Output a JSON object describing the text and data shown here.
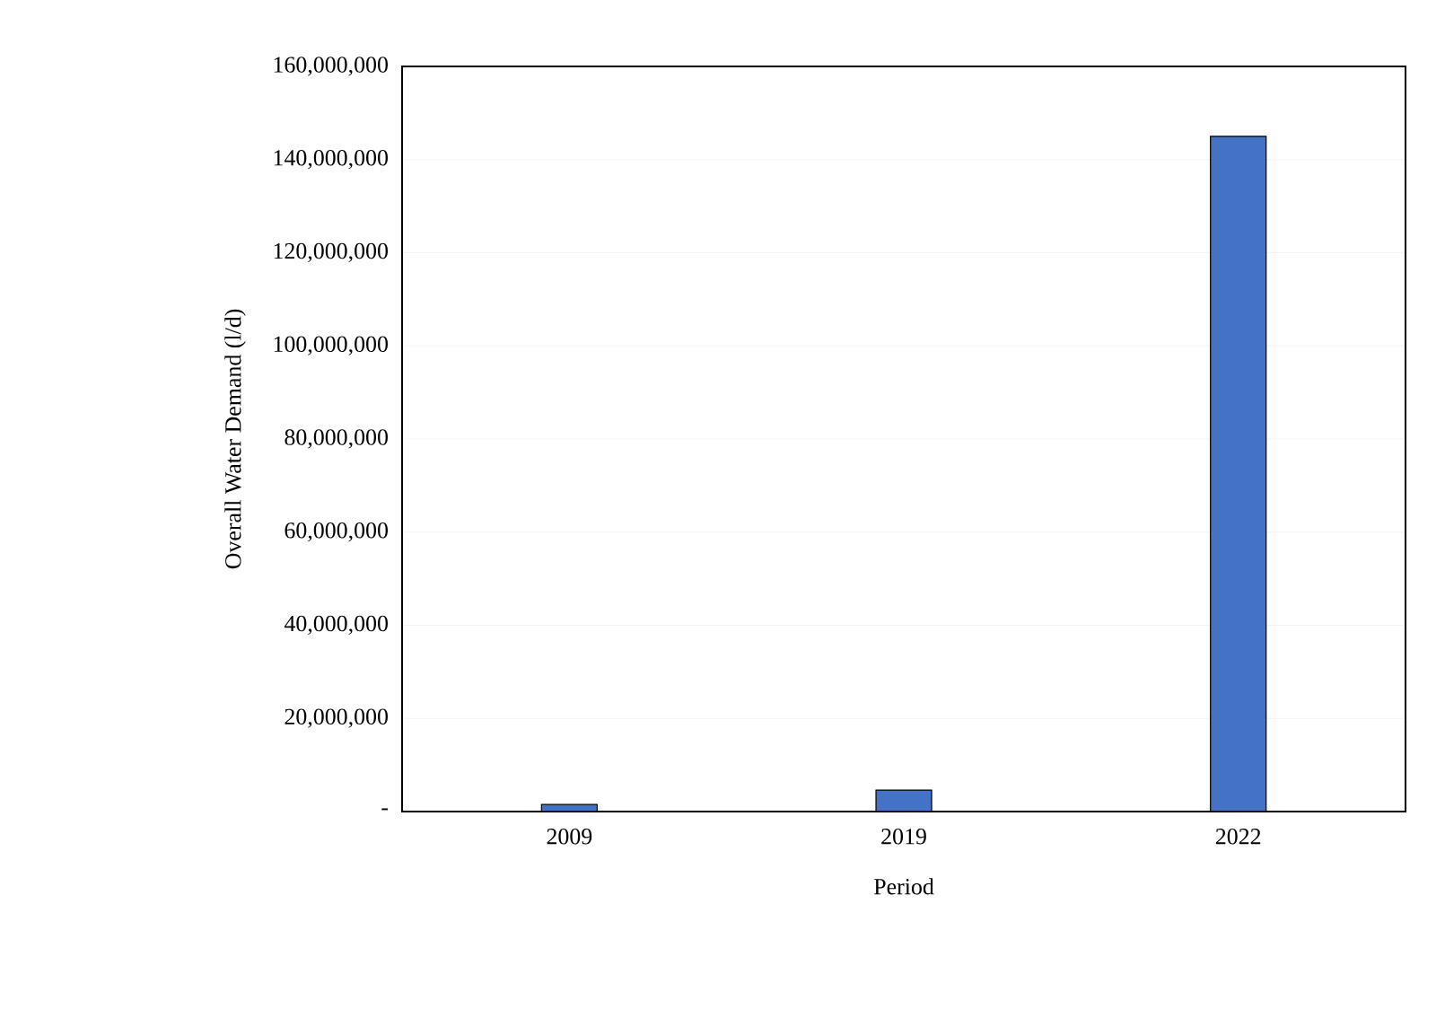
{
  "chart_data": {
    "type": "bar",
    "categories": [
      "2009",
      "2019",
      "2022"
    ],
    "values": [
      1500000,
      4600000,
      145000000
    ],
    "color": "#4472c4",
    "xlabel": "Period",
    "ylabel": "Overall Water Demand (l/d)",
    "ylim": [
      0,
      160000000
    ],
    "yticks": [
      {
        "value": 0,
        "label": "-"
      },
      {
        "value": 20000000,
        "label": "20,000,000"
      },
      {
        "value": 40000000,
        "label": "40,000,000"
      },
      {
        "value": 60000000,
        "label": "60,000,000"
      },
      {
        "value": 80000000,
        "label": "80,000,000"
      },
      {
        "value": 100000000,
        "label": "100,000,000"
      },
      {
        "value": 120000000,
        "label": "120,000,000"
      },
      {
        "value": 140000000,
        "label": "140,000,000"
      },
      {
        "value": 160000000,
        "label": "160,000,000"
      }
    ],
    "grid": "y"
  }
}
